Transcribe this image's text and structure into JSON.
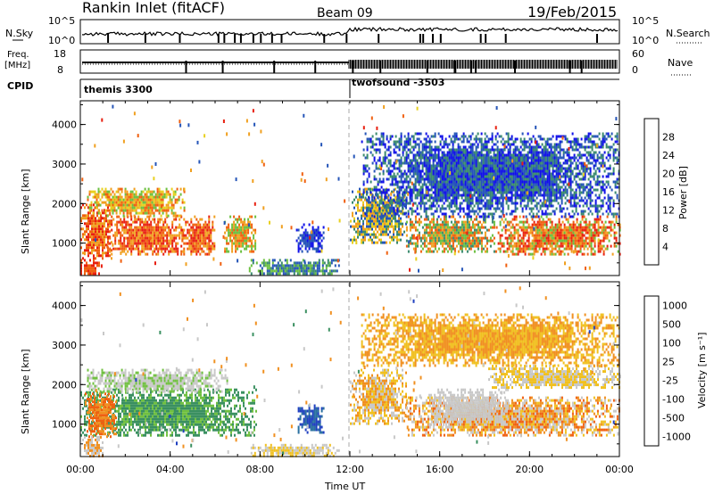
{
  "header": {
    "title": "Rankin Inlet (fitACF)",
    "beam": "Beam 09",
    "date": "19/Feb/2015"
  },
  "strips": {
    "nsky": {
      "left_label": "N.Sky",
      "right_label": "N.Search",
      "left_ticks": [
        "10^5",
        "10^0"
      ],
      "right_ticks": [
        "10^5",
        "10^0"
      ]
    },
    "freq": {
      "left_label": "Freq.",
      "left_unit": "[MHz]",
      "right_label": "Nave",
      "left_ticks": [
        "18",
        "8"
      ],
      "right_ticks": [
        "60",
        "0"
      ]
    },
    "cpid": {
      "label": "CPID",
      "programs": [
        {
          "name": "themis 3300",
          "start_hour": 0
        },
        {
          "name": "twofsound -3503",
          "start_hour": 12
        }
      ]
    }
  },
  "axes": {
    "ylabel": "Slant Range [km]",
    "xlabel": "Time UT",
    "y_ticks": [
      "1000",
      "2000",
      "3000",
      "4000"
    ],
    "y_tick_values": [
      1000,
      2000,
      3000,
      4000
    ],
    "y_range_km": [
      180,
      4600
    ],
    "x_ticks": [
      "00:00",
      "04:00",
      "08:00",
      "12:00",
      "16:00",
      "20:00",
      "00:00"
    ],
    "x_tick_hours": [
      0,
      4,
      8,
      12,
      16,
      20,
      24
    ],
    "x_range_hours": [
      0,
      24
    ]
  },
  "colorbars": {
    "power": {
      "label": "Power [dB]",
      "tick_labels": [
        "4",
        "8",
        "12",
        "16",
        "20",
        "24",
        "28"
      ],
      "colors": [
        "#1010e8",
        "#2555b8",
        "#3a8a6e",
        "#6cc040",
        "#e8d020",
        "#f0a020",
        "#f06010",
        "#e82010"
      ]
    },
    "velocity": {
      "label": "Velocity [m s⁻¹]",
      "tick_labels": [
        "1000",
        "500",
        "100",
        "25",
        "-25",
        "-100",
        "-500",
        "-1000"
      ],
      "colors": [
        "#2040c0",
        "#2a70a0",
        "#3a9060",
        "#70c040",
        "#c8c8c8",
        "#f0c020",
        "#f09020",
        "#f06010",
        "#e82010"
      ]
    }
  },
  "chart_data": {
    "type": "heatmap",
    "x_unit": "hours UT",
    "y_unit": "km",
    "panels": [
      {
        "name": "Power",
        "regions": [
          {
            "t0": 0.0,
            "t1": 1.4,
            "r0": 600,
            "r1": 2000,
            "colors": [
              "#f0a020",
              "#f06010",
              "#e82010"
            ]
          },
          {
            "t0": 1.2,
            "t1": 4.6,
            "r0": 700,
            "r1": 1700,
            "colors": [
              "#e82010",
              "#f06010",
              "#f0a020"
            ]
          },
          {
            "t0": 0.3,
            "t1": 4.6,
            "r0": 1700,
            "r1": 2400,
            "colors": [
              "#f0a020",
              "#e8d020",
              "#f06010",
              "#6cc040"
            ]
          },
          {
            "t0": 4.5,
            "t1": 6.0,
            "r0": 700,
            "r1": 1700,
            "colors": [
              "#f06010",
              "#e82010",
              "#f0a020"
            ]
          },
          {
            "t0": 6.4,
            "t1": 7.8,
            "r0": 800,
            "r1": 1700,
            "colors": [
              "#f06010",
              "#f0a020",
              "#6cc040"
            ]
          },
          {
            "t0": 0.0,
            "t1": 0.8,
            "r0": 200,
            "r1": 600,
            "colors": [
              "#e82010",
              "#f06010"
            ]
          },
          {
            "t0": 7.5,
            "t1": 11.5,
            "r0": 200,
            "r1": 600,
            "colors": [
              "#2555b8",
              "#3a8a6e",
              "#6cc040"
            ]
          },
          {
            "t0": 9.6,
            "t1": 10.8,
            "r0": 800,
            "r1": 1500,
            "colors": [
              "#2555b8",
              "#1010e8"
            ]
          },
          {
            "t0": 12.0,
            "t1": 14.5,
            "r0": 1000,
            "r1": 2400,
            "colors": [
              "#e8d020",
              "#f0a020",
              "#3a8a6e",
              "#2555b8"
            ]
          },
          {
            "t0": 14.5,
            "t1": 18.5,
            "r0": 800,
            "r1": 1700,
            "colors": [
              "#f0a020",
              "#6cc040",
              "#f06010",
              "#3a8a6e"
            ]
          },
          {
            "t0": 18.5,
            "t1": 24.0,
            "r0": 700,
            "r1": 1700,
            "colors": [
              "#f06010",
              "#e82010",
              "#f0a020",
              "#6cc040"
            ]
          },
          {
            "t0": 12.5,
            "t1": 24.0,
            "r0": 1700,
            "r1": 3800,
            "colors": [
              "#2555b8",
              "#3a8a6e",
              "#1010e8"
            ]
          }
        ]
      },
      {
        "name": "Velocity",
        "regions": [
          {
            "t0": 0.0,
            "t1": 7.8,
            "r0": 700,
            "r1": 1900,
            "colors": [
              "#3a9060",
              "#3a9060",
              "#70c040"
            ]
          },
          {
            "t0": 0.2,
            "t1": 1.6,
            "r0": 700,
            "r1": 1800,
            "colors": [
              "#f09020",
              "#f06010"
            ]
          },
          {
            "t0": 0.3,
            "t1": 6.5,
            "r0": 1800,
            "r1": 2400,
            "colors": [
              "#c8c8c8",
              "#c8c8c8",
              "#70c040"
            ]
          },
          {
            "t0": 0.0,
            "t1": 1.0,
            "r0": 200,
            "r1": 700,
            "colors": [
              "#c8c8c8",
              "#f09020"
            ]
          },
          {
            "t0": 9.6,
            "t1": 10.8,
            "r0": 800,
            "r1": 1500,
            "colors": [
              "#2040c0",
              "#2a70a0"
            ]
          },
          {
            "t0": 7.5,
            "t1": 11.5,
            "r0": 200,
            "r1": 500,
            "colors": [
              "#c8c8c8",
              "#f0c020"
            ]
          },
          {
            "t0": 12.0,
            "t1": 14.5,
            "r0": 1000,
            "r1": 2400,
            "colors": [
              "#f09020",
              "#f0c020",
              "#c8c8c8"
            ]
          },
          {
            "t0": 14.5,
            "t1": 24.0,
            "r0": 700,
            "r1": 1700,
            "colors": [
              "#f09020",
              "#f06010",
              "#c8c8c8",
              "#f0c020"
            ]
          },
          {
            "t0": 15.5,
            "t1": 19.0,
            "r0": 1000,
            "r1": 1900,
            "colors": [
              "#c8c8c8",
              "#c8c8c8"
            ]
          },
          {
            "t0": 18.0,
            "t1": 24.0,
            "r0": 1900,
            "r1": 2500,
            "colors": [
              "#c8c8c8",
              "#f0c020"
            ]
          },
          {
            "t0": 12.5,
            "t1": 24.0,
            "r0": 2500,
            "r1": 3800,
            "colors": [
              "#f09020",
              "#f0c020"
            ]
          }
        ]
      }
    ]
  }
}
